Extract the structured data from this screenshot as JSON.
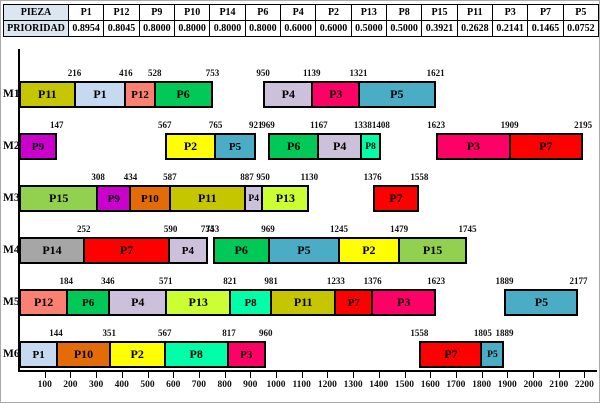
{
  "priority_table": {
    "row_headers": [
      "PIEZA",
      "PRIORIDAD"
    ],
    "pieces": [
      "P1",
      "P12",
      "P9",
      "P10",
      "P14",
      "P6",
      "P4",
      "P2",
      "P13",
      "P8",
      "P15",
      "P11",
      "P3",
      "P7",
      "P5"
    ],
    "priorities": [
      "0.8954",
      "0.8045",
      "0.8000",
      "0.8000",
      "0.8000",
      "0.8000",
      "0.6000",
      "0.6000",
      "0.5000",
      "0.5000",
      "0.3921",
      "0.2628",
      "0.2141",
      "0.1465",
      "0.0752"
    ]
  },
  "chart_data": {
    "type": "bar",
    "subtype": "gantt-machine-schedule",
    "xlim": [
      0,
      2245
    ],
    "x_ticks": [
      100,
      200,
      300,
      400,
      500,
      600,
      700,
      800,
      900,
      1000,
      1100,
      1200,
      1300,
      1400,
      1500,
      1600,
      1700,
      1800,
      1900,
      2000,
      2100,
      2200
    ],
    "grid": false,
    "legend": "none",
    "piece_colors": {
      "P1": "#c5d9f1",
      "P2": "#ffff00",
      "P3": "#ff0066",
      "P4": "#ccc0da",
      "P5": "#4bacc6",
      "P6": "#00c957",
      "P7": "#ff0000",
      "P8": "#00ffa9",
      "P9": "#cc00cc",
      "P10": "#e36c09",
      "P11": "#c6c600",
      "P12": "#fa8072",
      "P13": "#ccff33",
      "P14": "#a6a6a6",
      "P15": "#92d050"
    },
    "machines": [
      {
        "name": "M1",
        "segments": [
          {
            "piece": "P11",
            "start": 0,
            "end": 216
          },
          {
            "piece": "P1",
            "start": 216,
            "end": 416
          },
          {
            "piece": "P12",
            "start": 416,
            "end": 528
          },
          {
            "piece": "P6",
            "start": 528,
            "end": 753
          },
          {
            "piece": "P4",
            "start": 950,
            "end": 1139
          },
          {
            "piece": "P3",
            "start": 1139,
            "end": 1321
          },
          {
            "piece": "P5",
            "start": 1321,
            "end": 1621
          }
        ]
      },
      {
        "name": "M2",
        "segments": [
          {
            "piece": "P9",
            "start": 0,
            "end": 147
          },
          {
            "piece": "P2",
            "start": 567,
            "end": 765
          },
          {
            "piece": "P5",
            "start": 765,
            "end": 921
          },
          {
            "piece": "P6",
            "start": 969,
            "end": 1167
          },
          {
            "piece": "P4",
            "start": 1167,
            "end": 1338
          },
          {
            "piece": "P8",
            "start": 1338,
            "end": 1408
          },
          {
            "piece": "P3",
            "start": 1623,
            "end": 1909
          },
          {
            "piece": "P7",
            "start": 1909,
            "end": 2195
          }
        ]
      },
      {
        "name": "M3",
        "segments": [
          {
            "piece": "P15",
            "start": 0,
            "end": 308
          },
          {
            "piece": "P9",
            "start": 308,
            "end": 434
          },
          {
            "piece": "P10",
            "start": 434,
            "end": 587
          },
          {
            "piece": "P11",
            "start": 587,
            "end": 887
          },
          {
            "piece": "P4",
            "start": 887,
            "end": 950
          },
          {
            "piece": "P13",
            "start": 950,
            "end": 1130
          },
          {
            "piece": "P7",
            "start": 1376,
            "end": 1558
          }
        ]
      },
      {
        "name": "M4",
        "segments": [
          {
            "piece": "P14",
            "start": 0,
            "end": 252
          },
          {
            "piece": "P7",
            "start": 252,
            "end": 590
          },
          {
            "piece": "P4",
            "start": 590,
            "end": 734
          },
          {
            "piece": "P6",
            "start": 753,
            "end": 969
          },
          {
            "piece": "P5",
            "start": 969,
            "end": 1245
          },
          {
            "piece": "P2",
            "start": 1245,
            "end": 1479
          },
          {
            "piece": "P15",
            "start": 1479,
            "end": 1745
          }
        ]
      },
      {
        "name": "M5",
        "segments": [
          {
            "piece": "P12",
            "start": 0,
            "end": 184
          },
          {
            "piece": "P6",
            "start": 184,
            "end": 346
          },
          {
            "piece": "P4",
            "start": 346,
            "end": 571
          },
          {
            "piece": "P13",
            "start": 571,
            "end": 821
          },
          {
            "piece": "P8",
            "start": 821,
            "end": 981
          },
          {
            "piece": "P11",
            "start": 981,
            "end": 1233
          },
          {
            "piece": "P7",
            "start": 1233,
            "end": 1376
          },
          {
            "piece": "P3",
            "start": 1376,
            "end": 1623
          },
          {
            "piece": "P5",
            "start": 1889,
            "end": 2177
          }
        ]
      },
      {
        "name": "M6",
        "segments": [
          {
            "piece": "P1",
            "start": 0,
            "end": 144
          },
          {
            "piece": "P10",
            "start": 144,
            "end": 351
          },
          {
            "piece": "P2",
            "start": 351,
            "end": 567
          },
          {
            "piece": "P8",
            "start": 567,
            "end": 817
          },
          {
            "piece": "P3",
            "start": 817,
            "end": 960
          },
          {
            "piece": "P7",
            "start": 1558,
            "end": 1805
          },
          {
            "piece": "P5",
            "start": 1805,
            "end": 1889
          }
        ]
      }
    ]
  }
}
